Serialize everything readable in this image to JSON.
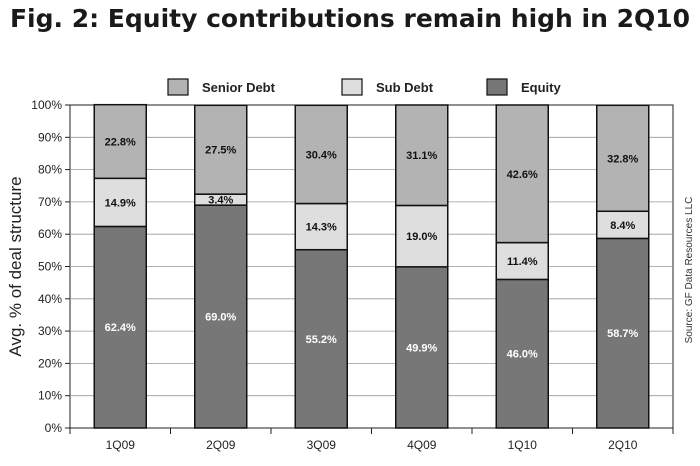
{
  "chart_data": {
    "type": "bar",
    "stacked": true,
    "title": "Fig. 2: Equity contributions remain high in 2Q10",
    "ylabel": "Avg. % of deal structure",
    "xlabel": "",
    "source_note": "Source: GF Data Resources LLC",
    "ylim": [
      0,
      100
    ],
    "yticks": [
      "0%",
      "10%",
      "20%",
      "30%",
      "40%",
      "50%",
      "60%",
      "70%",
      "80%",
      "90%",
      "100%"
    ],
    "legend_position": "top",
    "grid": true,
    "categories": [
      "1Q09",
      "2Q09",
      "3Q09",
      "4Q09",
      "1Q10",
      "2Q10"
    ],
    "series": [
      {
        "name": "Equity",
        "color": "#777777",
        "label_color": "#ffffff",
        "values": [
          62.4,
          69.0,
          55.2,
          49.9,
          46.0,
          58.7
        ],
        "labels": [
          "62.4%",
          "69.0%",
          "55.2%",
          "49.9%",
          "46.0%",
          "58.7%"
        ]
      },
      {
        "name": "Sub Debt",
        "color": "#dedede",
        "label_color": "#111111",
        "values": [
          14.9,
          3.4,
          14.3,
          19.0,
          11.4,
          8.4
        ],
        "labels": [
          "14.9%",
          "3.4%",
          "14.3%",
          "19.0%",
          "11.4%",
          "8.4%"
        ]
      },
      {
        "name": "Senior Debt",
        "color": "#b3b3b3",
        "label_color": "#111111",
        "values": [
          22.8,
          27.5,
          30.4,
          31.1,
          42.6,
          32.8
        ],
        "labels": [
          "22.8%",
          "27.5%",
          "30.4%",
          "31.1%",
          "42.6%",
          "32.8%"
        ]
      }
    ],
    "legend_order": [
      "Senior Debt",
      "Sub Debt",
      "Equity"
    ]
  }
}
